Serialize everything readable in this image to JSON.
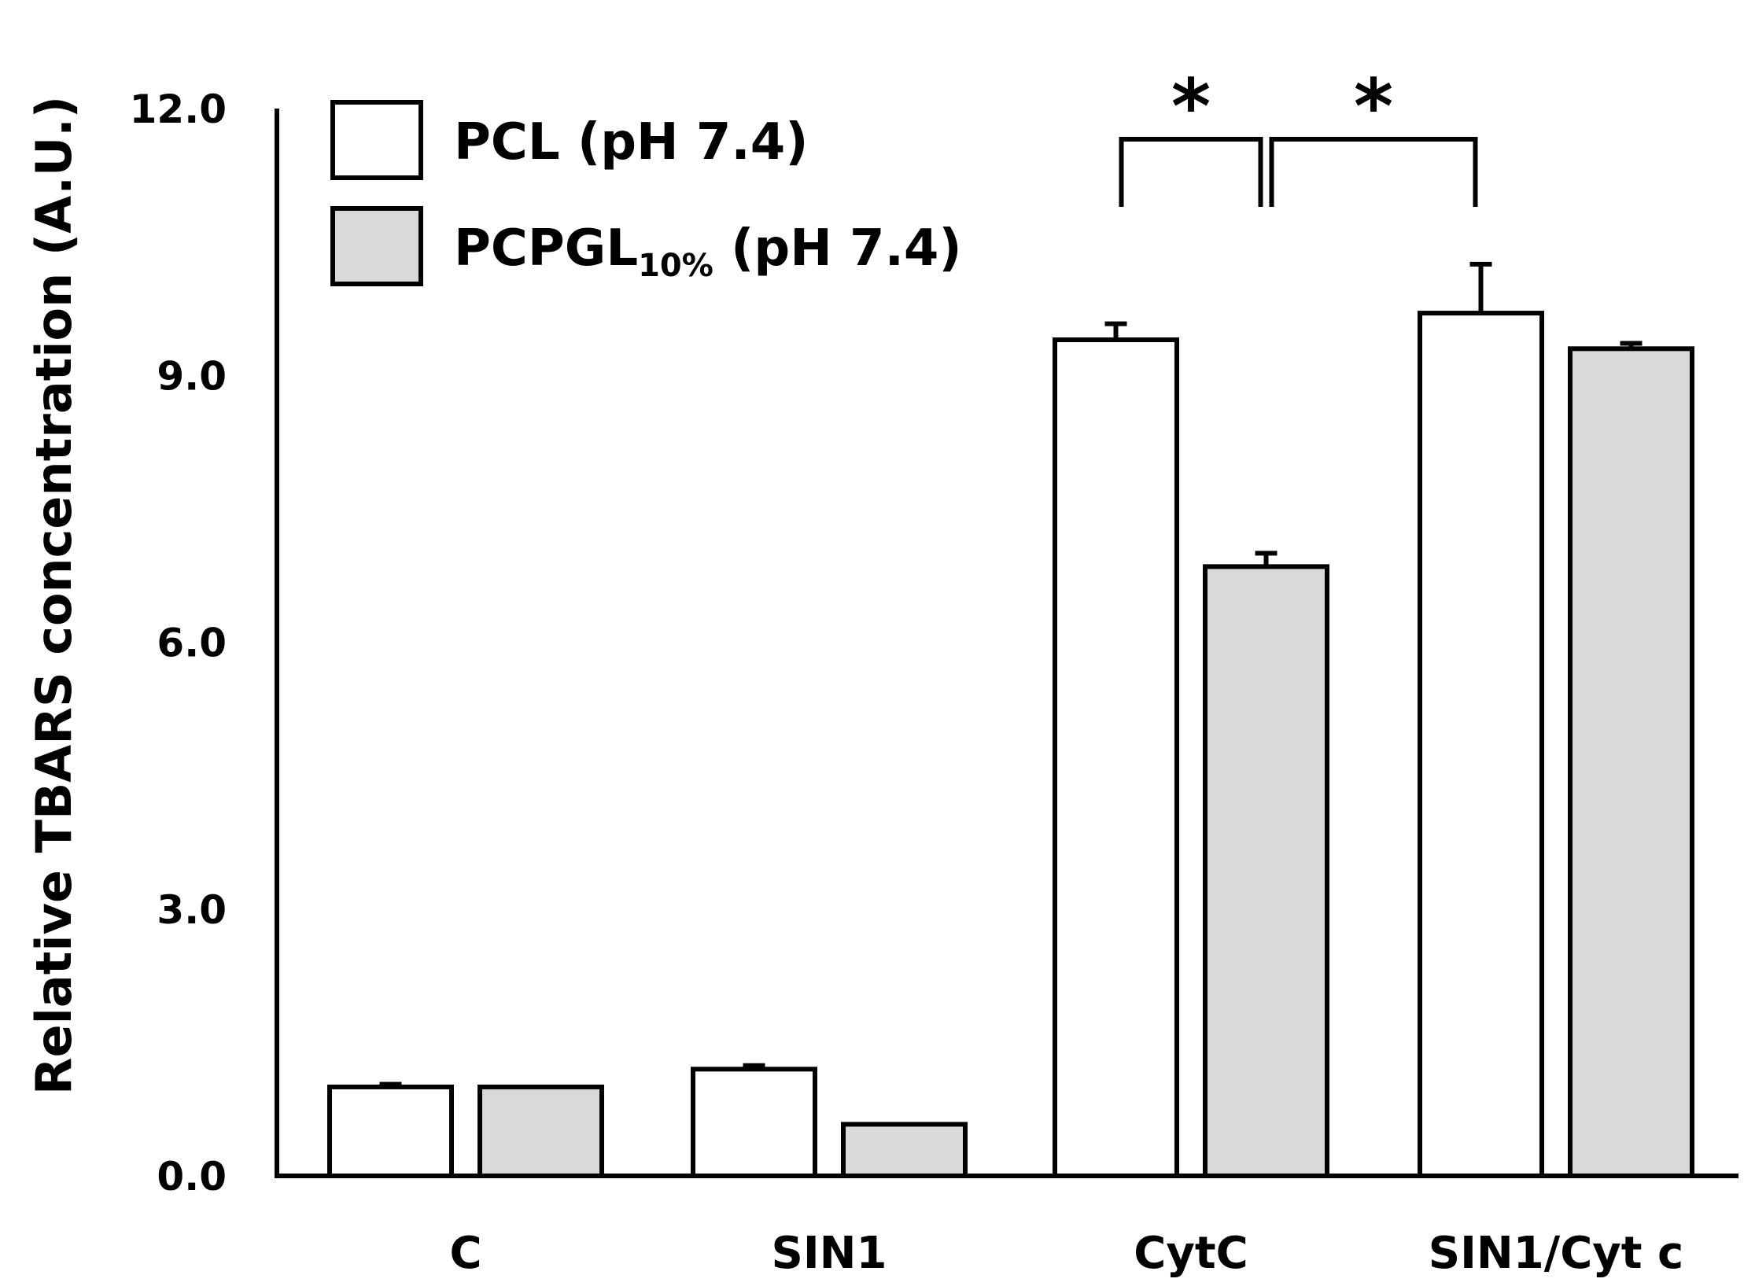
{
  "chart_data": {
    "type": "bar",
    "ylabel": "Relative TBARS concentration (A.U.)",
    "xlabel": "",
    "ylim": [
      0,
      12
    ],
    "yticks": [
      "0.0",
      "3.0",
      "6.0",
      "9.0",
      "12.0"
    ],
    "categories": [
      "C",
      "SIN1",
      "CytC",
      "SIN1/Cyt c"
    ],
    "series": [
      {
        "name": "PCL (pH 7.4)",
        "name_main": "PCL (pH 7.4)",
        "color": "#ffffff",
        "values": [
          1.0,
          1.2,
          9.4,
          9.7
        ],
        "errors": [
          0.03,
          0.04,
          0.18,
          0.55
        ]
      },
      {
        "name": "PCPGL10% (pH 7.4)",
        "name_main": "PCPGL",
        "name_sub": "10%",
        "name_tail": " (pH 7.4)",
        "color": "#d9d9d9",
        "values": [
          1.0,
          0.58,
          6.85,
          9.3
        ],
        "errors": [
          0.0,
          0.0,
          0.15,
          0.06
        ]
      }
    ],
    "significance": [
      {
        "from": "CytC PCL (pH 7.4)",
        "to": "CytC PCPGL10% (pH 7.4)",
        "label": "*"
      },
      {
        "from": "CytC PCPGL10% (pH 7.4)",
        "to": "SIN1/Cyt c PCL (pH 7.4)",
        "label": "*"
      }
    ],
    "legend_position": "top-left",
    "grid": false
  }
}
